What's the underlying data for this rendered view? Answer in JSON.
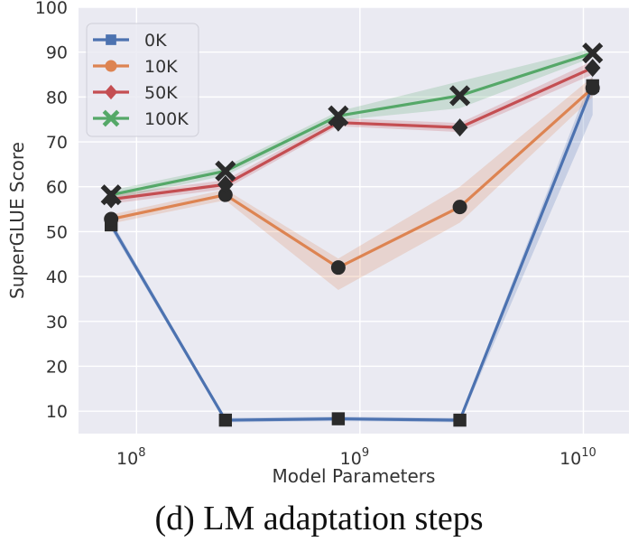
{
  "caption": "(d) LM adaptation steps",
  "chart_data": {
    "type": "line",
    "title": "",
    "xlabel": "Model Parameters",
    "ylabel": "SuperGLUE Score",
    "xscale": "log",
    "xlim": [
      55000000.0,
      16000000000.0
    ],
    "ylim": [
      5,
      100
    ],
    "grid": true,
    "legend_position": "top-left",
    "x_tick_labels": [
      {
        "base": "10",
        "exp": "8",
        "value": 100000000.0
      },
      {
        "base": "10",
        "exp": "9",
        "value": 1000000000.0
      },
      {
        "base": "10",
        "exp": "10",
        "value": 10000000000.0
      }
    ],
    "y_ticks": [
      10,
      20,
      30,
      40,
      50,
      60,
      70,
      80,
      90,
      100
    ],
    "x": [
      77000000.0,
      250000000.0,
      800000000.0,
      2800000000.0,
      11000000000.0
    ],
    "series": [
      {
        "name": "0K",
        "color": "#4C72B0",
        "marker": "square",
        "values": [
          51.5,
          8,
          8.3,
          8,
          82.5
        ],
        "lower": [
          50.5,
          7.5,
          7.8,
          7.5,
          76
        ],
        "upper": [
          52.5,
          8.5,
          8.8,
          8.5,
          85
        ]
      },
      {
        "name": "10K",
        "color": "#DD8452",
        "marker": "circle",
        "values": [
          52.8,
          58.2,
          42,
          55.5,
          82
        ],
        "lower": [
          51.8,
          57,
          37,
          52,
          80
        ],
        "upper": [
          53.8,
          59.4,
          44,
          60,
          84.5
        ]
      },
      {
        "name": "50K",
        "color": "#C44E52",
        "marker": "diamond",
        "values": [
          57.2,
          60.5,
          74.3,
          73.2,
          86.5
        ],
        "lower": [
          56.2,
          59.5,
          73.5,
          72.2,
          85
        ],
        "upper": [
          58.2,
          61.5,
          75.3,
          74.2,
          88
        ]
      },
      {
        "name": "100K",
        "color": "#55A868",
        "marker": "x",
        "values": [
          58.2,
          63.5,
          75.8,
          80.3,
          89.8
        ],
        "lower": [
          57.2,
          62.5,
          74.8,
          77.5,
          88.8
        ],
        "upper": [
          59.2,
          64.5,
          76.8,
          83.5,
          90.8
        ]
      }
    ]
  }
}
